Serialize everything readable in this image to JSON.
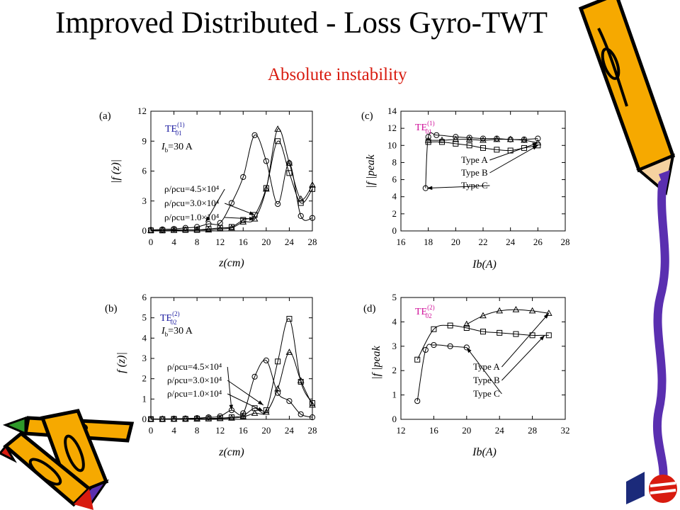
{
  "slide": {
    "title": "Improved Distributed - Loss Gyro-TWT",
    "subtitle": "Absolute instability"
  },
  "colors": {
    "subtitle": "#d81b0f",
    "mode_a": "#1a1aa0",
    "mode_c": "#d0109a"
  },
  "chart_data": [
    {
      "id": "a",
      "panel_label": "(a)",
      "type": "line",
      "xlabel": "z(cm)",
      "ylabel": "|f (z)|",
      "xlim": [
        0,
        28
      ],
      "ylim": [
        0,
        12
      ],
      "xticks": [
        0,
        4,
        8,
        12,
        16,
        20,
        24,
        28
      ],
      "yticks": [
        0,
        3,
        6,
        9,
        12
      ],
      "mode_label": "TE",
      "mode_sup": "(1)",
      "mode_sub": "01",
      "mode_color": "#1a1aa0",
      "current_label": "=30 A",
      "series": [
        {
          "name": "ρ/ρcu=4.5×10⁴",
          "marker": "circle",
          "x": [
            0,
            2,
            4,
            6,
            8,
            10,
            12,
            14,
            16,
            18,
            20,
            22,
            24,
            26,
            28
          ],
          "y": [
            0.1,
            0.15,
            0.2,
            0.3,
            0.4,
            0.7,
            0.8,
            2.8,
            5.4,
            9.6,
            7.0,
            2.7,
            6.8,
            1.5,
            1.3
          ]
        },
        {
          "name": "ρ/ρcu=3.0×10⁴",
          "marker": "square",
          "x": [
            0,
            2,
            4,
            6,
            8,
            10,
            12,
            14,
            16,
            18,
            20,
            22,
            24,
            26,
            28
          ],
          "y": [
            0.05,
            0.05,
            0.1,
            0.1,
            0.1,
            0.2,
            0.3,
            0.4,
            1.1,
            1.6,
            4.3,
            9.0,
            5.8,
            2.8,
            4.2
          ]
        },
        {
          "name": "ρ/ρcu=1.0×10⁴",
          "marker": "triangle",
          "x": [
            0,
            2,
            4,
            6,
            8,
            10,
            12,
            14,
            16,
            18,
            20,
            22,
            24,
            26,
            28
          ],
          "y": [
            0.05,
            0.05,
            0.05,
            0.1,
            0.1,
            0.1,
            0.2,
            0.3,
            0.9,
            1.2,
            4.2,
            10.2,
            6.8,
            3.2,
            4.6
          ]
        }
      ],
      "annotations": [
        "ρ/ρcu=4.5×10⁴",
        "ρ/ρcu=3.0×10⁴",
        "ρ/ρcu=1.0×10⁴"
      ]
    },
    {
      "id": "b",
      "panel_label": "(b)",
      "type": "line",
      "xlabel": "z(cm)",
      "ylabel": "f (z)|",
      "xlim": [
        0,
        28
      ],
      "ylim": [
        0,
        6
      ],
      "xticks": [
        0,
        4,
        8,
        12,
        16,
        20,
        24,
        28
      ],
      "yticks": [
        0,
        1,
        2,
        3,
        4,
        5,
        6
      ],
      "mode_label": "TE",
      "mode_sup": "(2)",
      "mode_sub": "02",
      "mode_color": "#1a1aa0",
      "current_label": "=30 A",
      "series": [
        {
          "name": "ρ/ρcu=4.5×10⁴",
          "marker": "circle",
          "x": [
            0,
            2,
            4,
            6,
            8,
            10,
            12,
            14,
            16,
            18,
            20,
            22,
            24,
            26,
            28
          ],
          "y": [
            0.02,
            0.02,
            0.03,
            0.04,
            0.06,
            0.1,
            0.15,
            0.45,
            0.3,
            2.1,
            2.9,
            1.3,
            0.9,
            0.25,
            0.1
          ]
        },
        {
          "name": "ρ/ρcu=3.0×10⁴",
          "marker": "square",
          "x": [
            0,
            2,
            4,
            6,
            8,
            10,
            12,
            14,
            16,
            18,
            20,
            22,
            24,
            26,
            28
          ],
          "y": [
            0.01,
            0.01,
            0.02,
            0.02,
            0.03,
            0.04,
            0.06,
            0.1,
            0.18,
            0.55,
            0.45,
            2.85,
            4.95,
            1.85,
            0.8
          ]
        },
        {
          "name": "ρ/ρcu=1.0×10⁴",
          "marker": "triangle",
          "x": [
            0,
            2,
            4,
            6,
            8,
            10,
            12,
            14,
            16,
            18,
            20,
            22,
            24,
            26,
            28
          ],
          "y": [
            0.01,
            0.01,
            0.01,
            0.02,
            0.02,
            0.03,
            0.04,
            0.06,
            0.12,
            0.3,
            0.35,
            1.5,
            3.3,
            1.9,
            0.7
          ]
        }
      ],
      "annotations": [
        "ρ/ρcu=4.5×10⁴",
        "ρ/ρcu=3.0×10⁴",
        "ρ/ρcu=1.0×10⁴"
      ]
    },
    {
      "id": "c",
      "panel_label": "(c)",
      "type": "line",
      "xlabel": "Ib(A)",
      "ylabel": "|f |peak",
      "xlim": [
        16,
        28
      ],
      "ylim": [
        0,
        14
      ],
      "xticks": [
        16,
        18,
        20,
        22,
        24,
        26,
        28
      ],
      "yticks": [
        0,
        2,
        4,
        6,
        8,
        10,
        12,
        14
      ],
      "mode_label": "TE",
      "mode_sup": "(1)",
      "mode_sub": "01",
      "mode_color": "#d0109a",
      "series": [
        {
          "name": "Type A",
          "marker": "triangle",
          "x": [
            18,
            19,
            20,
            21,
            22,
            23,
            24,
            25,
            26
          ],
          "y": [
            10.6,
            10.6,
            10.7,
            10.7,
            10.6,
            10.7,
            10.7,
            10.6,
            10.3
          ]
        },
        {
          "name": "Type B",
          "marker": "square",
          "x": [
            18,
            19,
            20,
            21,
            22,
            23,
            24,
            25,
            26
          ],
          "y": [
            10.4,
            10.4,
            10.2,
            10.0,
            9.7,
            9.5,
            9.4,
            9.7,
            10.0
          ]
        },
        {
          "name": "Type C",
          "marker": "circle",
          "x": [
            17.8,
            18,
            18.6,
            20,
            21,
            22,
            23,
            24,
            25,
            26
          ],
          "y": [
            5.0,
            11.0,
            11.2,
            11.0,
            10.9,
            10.8,
            10.8,
            10.7,
            10.7,
            10.8
          ]
        }
      ],
      "annotations": [
        "Type A",
        "Type B",
        "Type C"
      ]
    },
    {
      "id": "d",
      "panel_label": "(d)",
      "type": "line",
      "xlabel": "Ib(A)",
      "ylabel": "|f |peak",
      "xlim": [
        12,
        32
      ],
      "ylim": [
        0,
        5
      ],
      "xticks": [
        12,
        16,
        20,
        24,
        28,
        32
      ],
      "yticks": [
        0,
        1,
        2,
        3,
        4,
        5
      ],
      "mode_label": "TE",
      "mode_sup": "(2)",
      "mode_sub": "02",
      "mode_color": "#d0109a",
      "series": [
        {
          "name": "Type A",
          "marker": "triangle",
          "x": [
            20,
            22,
            24,
            26,
            28,
            30
          ],
          "y": [
            3.9,
            4.25,
            4.45,
            4.5,
            4.45,
            4.35
          ]
        },
        {
          "name": "Type B",
          "marker": "square",
          "x": [
            14,
            16,
            18,
            20,
            22,
            24,
            26,
            28,
            30
          ],
          "y": [
            2.45,
            3.7,
            3.85,
            3.75,
            3.6,
            3.55,
            3.5,
            3.45,
            3.45
          ]
        },
        {
          "name": "Type C",
          "marker": "circle",
          "x": [
            14,
            15,
            16,
            18,
            20
          ],
          "y": [
            0.75,
            2.85,
            3.05,
            3.0,
            2.95
          ]
        }
      ],
      "annotations": [
        "Type A",
        "Type B",
        "Type C"
      ]
    }
  ]
}
